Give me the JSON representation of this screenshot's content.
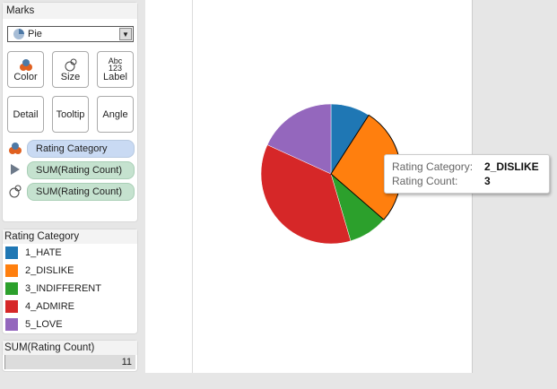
{
  "marks": {
    "title": "Marks",
    "mark_type": "Pie",
    "buttons": {
      "color": "Color",
      "size": "Size",
      "label": "Label",
      "label_icon_text": "Abc\n123",
      "detail": "Detail",
      "tooltip": "Tooltip",
      "angle": "Angle"
    },
    "pills": [
      {
        "field": "Rating Category",
        "role": "color",
        "icon": "color-icon"
      },
      {
        "field": "SUM(Rating Count)",
        "role": "angle",
        "icon": "angle-icon"
      },
      {
        "field": "SUM(Rating Count)",
        "role": "size",
        "icon": "size-icon"
      }
    ]
  },
  "legend": {
    "title": "Rating Category",
    "items": [
      {
        "label": "1_HATE",
        "color": "#1f77b4"
      },
      {
        "label": "2_DISLIKE",
        "color": "#ff7f0e"
      },
      {
        "label": "3_INDIFFERENT",
        "color": "#2ca02c"
      },
      {
        "label": "4_ADMIRE",
        "color": "#d62728"
      },
      {
        "label": "5_LOVE",
        "color": "#9467bd"
      }
    ]
  },
  "size_legend": {
    "title": "SUM(Rating Count)",
    "value": "11"
  },
  "tooltip": {
    "k1": "Rating Category:",
    "v1": "2_DISLIKE",
    "k2": "Rating Count:",
    "v2": "3"
  },
  "chart_data": {
    "type": "pie",
    "categories": [
      "1_HATE",
      "2_DISLIKE",
      "3_INDIFFERENT",
      "4_ADMIRE",
      "5_LOVE"
    ],
    "values": [
      1,
      3,
      1,
      4,
      2
    ],
    "colors": [
      "#1f77b4",
      "#ff7f0e",
      "#2ca02c",
      "#d62728",
      "#9467bd"
    ],
    "highlighted": "2_DISLIKE"
  }
}
